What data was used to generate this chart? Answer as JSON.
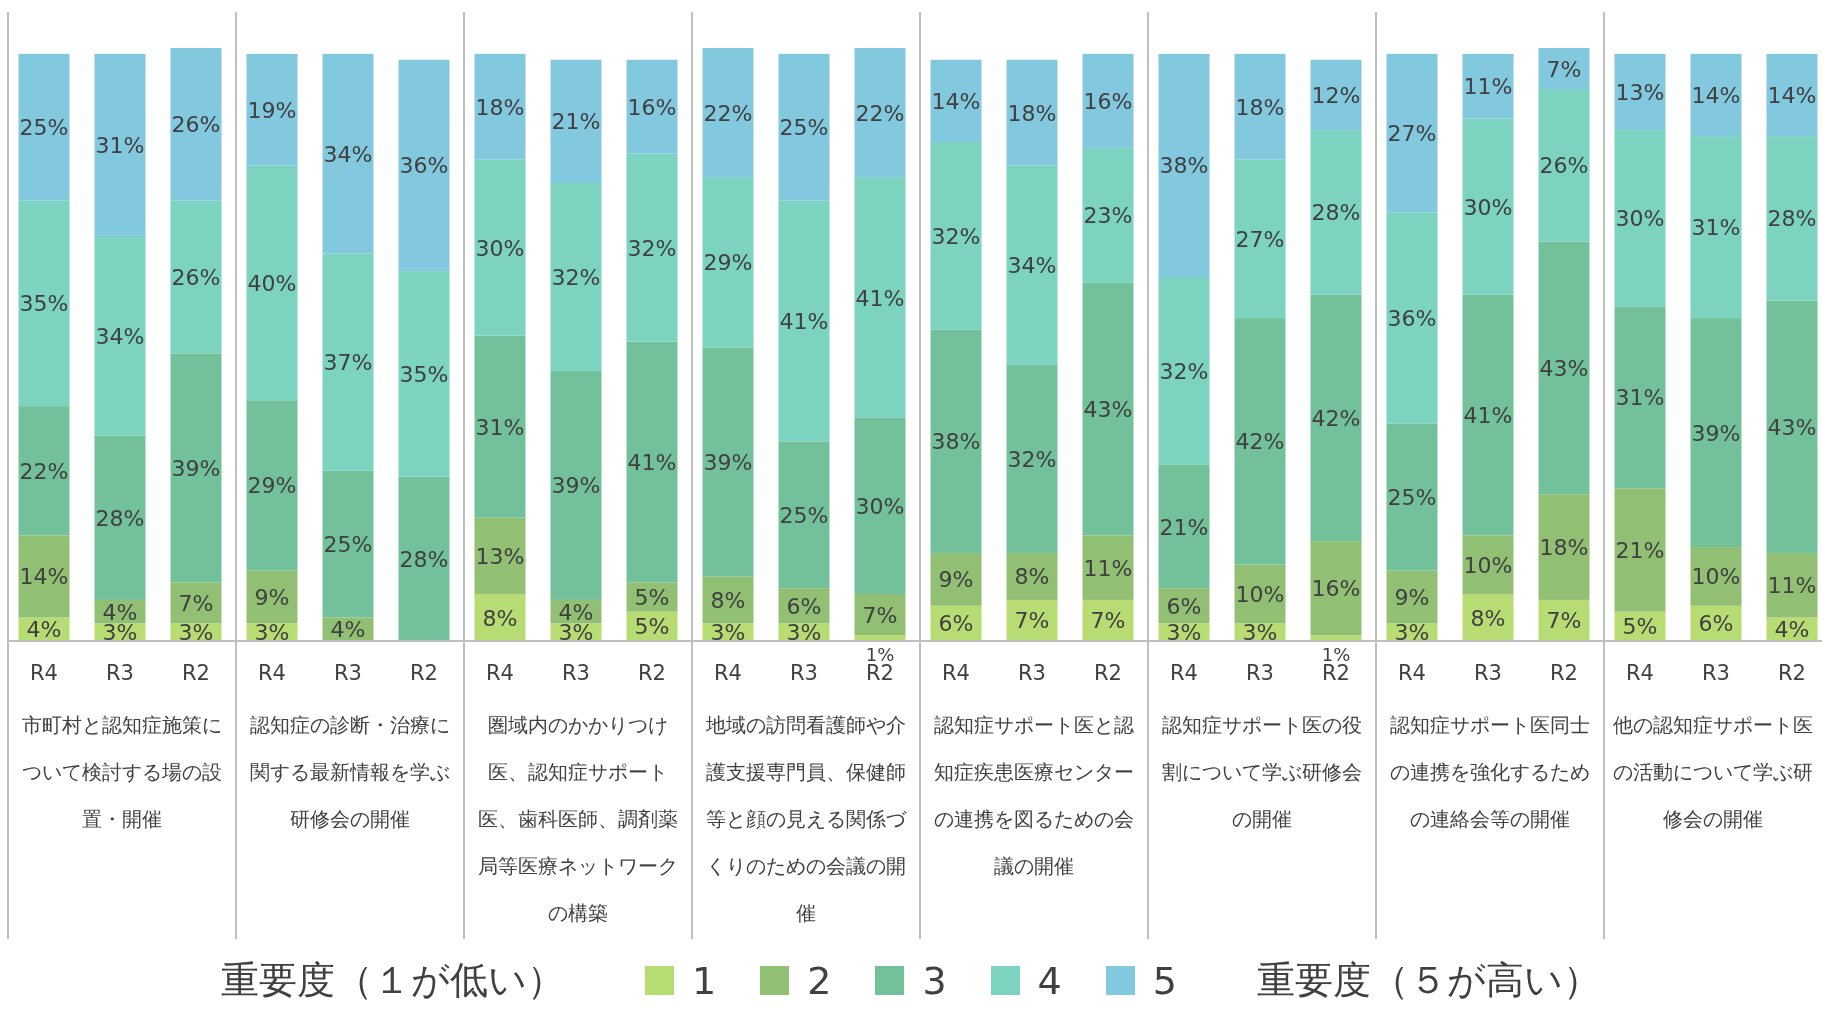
{
  "chart_data": {
    "type": "bar",
    "stacked": true,
    "legend": "bottom",
    "legend_title": "重要度（１が低い）",
    "categories": [
      "R4",
      "R3",
      "R2",
      "R4",
      "R3",
      "R2",
      "R4",
      "R3",
      "R2",
      "R4",
      "R3",
      "R2",
      "R4",
      "R3",
      "R2",
      "R4",
      "R3",
      "R2",
      "R4",
      "R3",
      "R2",
      "R4",
      "R3",
      "R2"
    ],
    "series": [
      {
        "name": "1",
        "color": "#b8dc74",
        "values": [
          4,
          3,
          3,
          3,
          null,
          null,
          8,
          3,
          5,
          3,
          3,
          1,
          6,
          7,
          7,
          3,
          3,
          1,
          3,
          8,
          7,
          5,
          6,
          4
        ],
        "value_labels": [
          "4%",
          "3%",
          "3%",
          "3%",
          null,
          null,
          "8%",
          "3%",
          "5%",
          "3%",
          "3%",
          "1%",
          "6%",
          "7%",
          "7%",
          "3%",
          "3%",
          "1%",
          "3%",
          "8%",
          "7%",
          "5%",
          "6%",
          "4%"
        ]
      },
      {
        "name": "2",
        "color": "#91bf73",
        "values": [
          14,
          4,
          7,
          9,
          4,
          null,
          13,
          4,
          5,
          8,
          6,
          7,
          9,
          8,
          11,
          6,
          10,
          16,
          9,
          10,
          18,
          21,
          10,
          11
        ],
        "value_labels": [
          "14%",
          "4%",
          "7%",
          "9%",
          "4%",
          null,
          "13%",
          "4%",
          "5%",
          "8%",
          "6%",
          "7%",
          "9%",
          "8%",
          "11%",
          "6%",
          "10%",
          "16%",
          "9%",
          "10%",
          "18%",
          "21%",
          "10%",
          "11%"
        ]
      },
      {
        "name": "3",
        "color": "#72c19a",
        "values": [
          22,
          28,
          39,
          29,
          25,
          28,
          31,
          39,
          41,
          39,
          25,
          30,
          38,
          32,
          43,
          21,
          42,
          42,
          25,
          41,
          43,
          31,
          39,
          43
        ],
        "value_labels": [
          "22%",
          "28%",
          "39%",
          "29%",
          "25%",
          "28%",
          "31%",
          "39%",
          "41%",
          "39%",
          "25%",
          "30%",
          "38%",
          "32%",
          "43%",
          "21%",
          "42%",
          "42%",
          "25%",
          "41%",
          "43%",
          "31%",
          "39%",
          "43%"
        ]
      },
      {
        "name": "4",
        "color": "#7bd3c0",
        "values": [
          35,
          34,
          26,
          40,
          37,
          35,
          30,
          32,
          32,
          29,
          41,
          41,
          32,
          34,
          23,
          32,
          27,
          28,
          36,
          30,
          26,
          30,
          31,
          28
        ],
        "value_labels": [
          "35%",
          "34%",
          "26%",
          "40%",
          "37%",
          "35%",
          "30%",
          "32%",
          "32%",
          "29%",
          "41%",
          "41%",
          "32%",
          "34%",
          "23%",
          "32%",
          "27%",
          "28%",
          "36%",
          "30%",
          "26%",
          "30%",
          "31%",
          "28%"
        ]
      },
      {
        "name": "5",
        "color": "#82c8df",
        "values": [
          25,
          31,
          26,
          19,
          34,
          36,
          18,
          21,
          16,
          22,
          25,
          22,
          14,
          18,
          16,
          38,
          18,
          12,
          27,
          11,
          7,
          13,
          14,
          14
        ],
        "value_labels": [
          "25%",
          "31%",
          "26%",
          "19%",
          "34%",
          "36%",
          "18%",
          "21%",
          "16%",
          "22%",
          "25%",
          "22%",
          "14%",
          "18%",
          "16%",
          "38%",
          "18%",
          "12%",
          "27%",
          "11%",
          "7%",
          "13%",
          "14%",
          "14%"
        ]
      }
    ],
    "annotations": [
      "市町村と認知症施策について検討する場の設置・開催",
      "認知症の診断・治療に関する最新情報を学ぶ研修会の開催",
      "圏域内のかかりつけ医、認知症サポート医、歯科医師、調剤薬局等医療ネットワークの構築",
      "地域の訪問看護師や介護支援専門員、保健師等と顔の見える関係づくりのための会議の開催",
      "認知症サポート医と認知症疾患医療センターの連携を図るための会議の開催",
      "認知症サポート医の役割について学ぶ研修会の開催",
      "認知症サポート医同士の連携を強化するための連絡会等の開催",
      "他の認知症サポート医の活動について学ぶ研修会の開催",
      "重要度（５が高い）"
    ]
  }
}
